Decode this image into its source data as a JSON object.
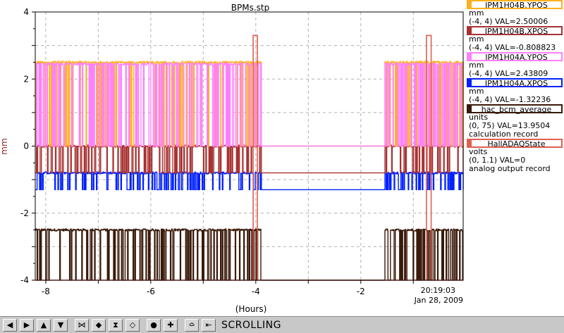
{
  "chart_data": {
    "type": "line",
    "title": "BPMs.stp",
    "xlabel": "(Hours)",
    "ylabel": "mm",
    "xlim": [
      -8.2,
      -0.05
    ],
    "ylim": [
      -4,
      4
    ],
    "x_ticks": [
      "-8",
      "-6",
      "-4",
      "-2"
    ],
    "y_ticks": [
      "4",
      "2",
      "0",
      "-2",
      "-4"
    ],
    "timestamp_time": "20:19:03",
    "timestamp_date": "Jan 28, 2009",
    "grid": true,
    "legend_position": "right",
    "series": [
      {
        "name": "IPM1H04B.YPOS",
        "color": "#ffb020",
        "unit": "mm",
        "range": "(-4, 4) VAL=2.50006",
        "high": 2.5,
        "low": 0.0
      },
      {
        "name": "IPM1H04B.XPOS",
        "color": "#a83232",
        "unit": "mm",
        "range": "(-4, 4) VAL=-0.808823",
        "high": 0.0,
        "low": -0.8
      },
      {
        "name": "IPM1H04A.YPOS",
        "color": "#ff80ff",
        "unit": "mm",
        "range": "(-4, 4) VAL=2.43809",
        "high": 2.45,
        "low": 0.0
      },
      {
        "name": "IPM1H04A.XPOS",
        "color": "#0020ff",
        "unit": "mm",
        "range": "(-4, 4) VAL=-1.32236",
        "high": -0.8,
        "low": -1.3
      },
      {
        "name": "hac_bcm_average",
        "color": "#3a1a0a",
        "unit": "units",
        "range": "(0, 75) VAL=13.9504",
        "extra": "calculation record",
        "high": -2.5,
        "low": -4.0
      },
      {
        "name": "HallADAQState",
        "color": "#e06050",
        "unit": "volts",
        "range": "(0, 1.1) VAL=0",
        "extra": "analog output record",
        "high": 3.3,
        "low": -4.0
      }
    ],
    "beam_on_intervals": [
      [
        -8.2,
        -7.4
      ],
      [
        -7.4,
        -3.9
      ],
      [
        -1.55,
        -0.05
      ]
    ],
    "daq_pulses": [
      [
        -4.05,
        -3.97
      ],
      [
        -0.75,
        -0.66
      ]
    ]
  },
  "toolbar": {
    "buttons": [
      "◀",
      "▶",
      "▲",
      "▼",
      "⋈",
      "◆",
      "⧗",
      "◇",
      "●",
      "✚",
      "≏",
      "⇤"
    ],
    "buttons_names": [
      "scroll-left-icon",
      "scroll-right-icon",
      "scroll-up-icon",
      "scroll-down-icon",
      "zoom-in-x-icon",
      "zoom-out-x-icon",
      "zoom-in-y-icon",
      "zoom-out-y-icon",
      "zoom-reset-icon",
      "crosshair-icon",
      "autoscale-icon",
      "jump-to-end-icon"
    ],
    "status": "SCROLLING"
  }
}
